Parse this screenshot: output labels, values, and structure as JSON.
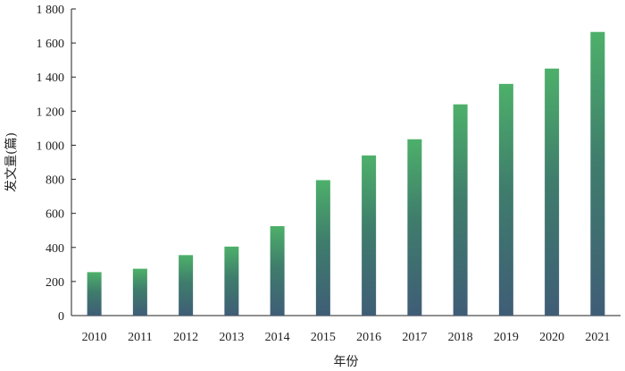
{
  "chart_data": {
    "type": "bar",
    "title": "",
    "xlabel": "年份",
    "ylabel": "发文量(篇)",
    "categories": [
      "2010",
      "2011",
      "2012",
      "2013",
      "2014",
      "2015",
      "2016",
      "2017",
      "2018",
      "2019",
      "2020",
      "2021"
    ],
    "values": [
      255,
      275,
      355,
      405,
      525,
      795,
      940,
      1035,
      1240,
      1360,
      1450,
      1665
    ],
    "ylim": [
      0,
      1800
    ],
    "yticks": [
      0,
      200,
      400,
      600,
      800,
      1000,
      1200,
      1400,
      1600,
      1800
    ],
    "ytick_labels": [
      "0",
      "200",
      "400",
      "600",
      "800",
      "1 000",
      "1 200",
      "1 400",
      "1 600",
      "1 800"
    ],
    "grid": false,
    "bar_colors": {
      "top": "#4db06a",
      "bottom": "#3f5d76"
    }
  }
}
